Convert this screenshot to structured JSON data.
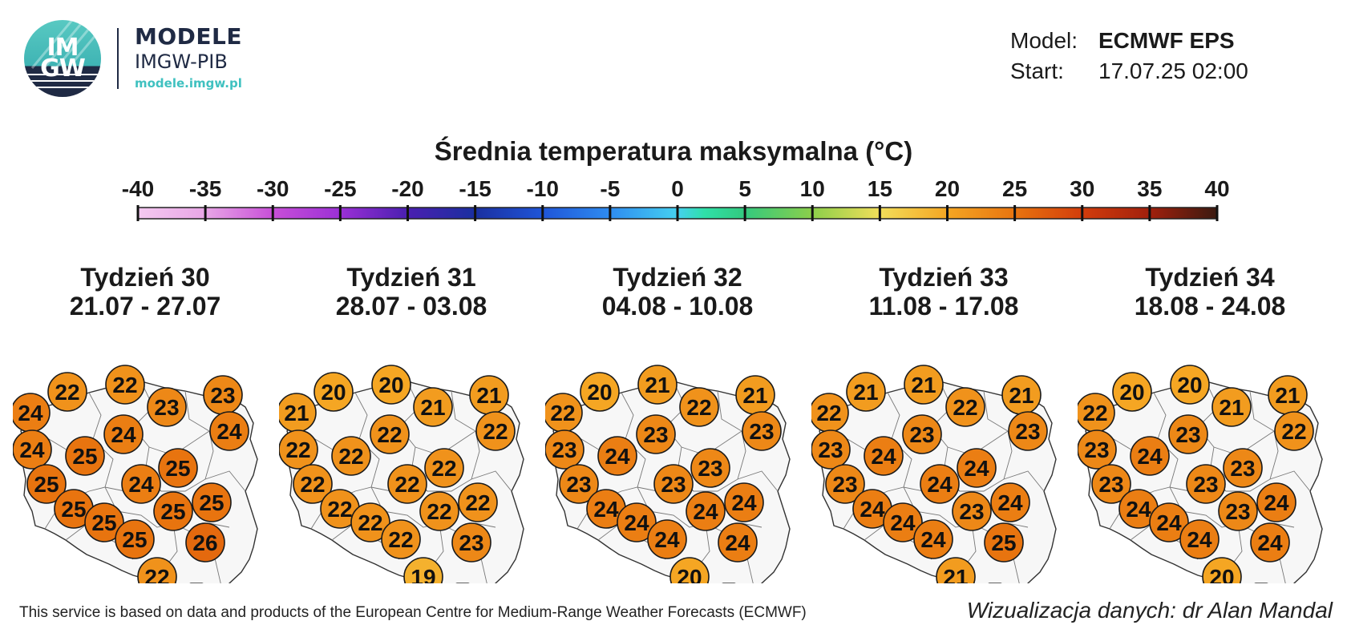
{
  "logo": {
    "mark_top": "IM",
    "mark_bottom": "GW",
    "title": "MODELE",
    "subtitle": "IMGW-PIB",
    "url": "modele.imgw.pl"
  },
  "model_info": {
    "model_label": "Model:",
    "model_value": "ECMWF EPS",
    "start_label": "Start:",
    "start_value": "17.07.25 02:00"
  },
  "map_title": "Średnia temperatura maksymalna (°C)",
  "scale": {
    "ticks": [
      "-40",
      "-35",
      "-30",
      "-25",
      "-20",
      "-15",
      "-10",
      "-5",
      "0",
      "5",
      "10",
      "15",
      "20",
      "25",
      "30",
      "35",
      "40"
    ],
    "stops": [
      {
        "v": -40,
        "c": "#f4c9f0"
      },
      {
        "v": -35,
        "c": "#e8a6e6"
      },
      {
        "v": -30,
        "c": "#c84fd8"
      },
      {
        "v": -25,
        "c": "#9b30d6"
      },
      {
        "v": -20,
        "c": "#4a1fb0"
      },
      {
        "v": -15,
        "c": "#1a2fa0"
      },
      {
        "v": -10,
        "c": "#1f55d8"
      },
      {
        "v": -5,
        "c": "#2e8cf0"
      },
      {
        "v": 0,
        "c": "#45d0f0"
      },
      {
        "v": 2,
        "c": "#2fe0a8"
      },
      {
        "v": 5,
        "c": "#33c97e"
      },
      {
        "v": 10,
        "c": "#8ccf4a"
      },
      {
        "v": 15,
        "c": "#f2de5a"
      },
      {
        "v": 20,
        "c": "#f5a623"
      },
      {
        "v": 25,
        "c": "#e8740f"
      },
      {
        "v": 30,
        "c": "#d23d0c"
      },
      {
        "v": 35,
        "c": "#a1200d"
      },
      {
        "v": 40,
        "c": "#3b1a10"
      }
    ]
  },
  "panels": [
    {
      "week": "Tydzień 30",
      "dates": "21.07 - 27.07",
      "values": [
        22,
        22,
        23,
        23,
        24,
        24,
        24,
        24,
        25,
        25,
        25,
        24,
        25,
        25,
        25,
        25,
        25,
        26,
        22
      ]
    },
    {
      "week": "Tydzień 31",
      "dates": "28.07 - 03.08",
      "values": [
        20,
        20,
        21,
        21,
        21,
        22,
        22,
        22,
        22,
        22,
        22,
        22,
        22,
        22,
        22,
        22,
        22,
        23,
        19
      ]
    },
    {
      "week": "Tydzień 32",
      "dates": "04.08 - 10.08",
      "values": [
        20,
        21,
        22,
        21,
        22,
        23,
        23,
        23,
        24,
        23,
        23,
        23,
        24,
        24,
        24,
        24,
        24,
        24,
        20
      ]
    },
    {
      "week": "Tydzień 33",
      "dates": "11.08 - 17.08",
      "values": [
        21,
        21,
        22,
        21,
        22,
        23,
        23,
        23,
        24,
        24,
        23,
        24,
        24,
        23,
        24,
        24,
        24,
        25,
        21
      ]
    },
    {
      "week": "Tydzień 34",
      "dates": "18.08 - 24.08",
      "values": [
        20,
        20,
        21,
        21,
        22,
        23,
        22,
        23,
        24,
        23,
        23,
        23,
        24,
        23,
        24,
        24,
        24,
        24,
        20
      ]
    }
  ],
  "footer": {
    "source": "This service is based on data and products of the European Centre for Medium-Range Weather Forecasts (ECMWF)",
    "author": "Wizualizacja danych: dr Alan Mandal"
  }
}
